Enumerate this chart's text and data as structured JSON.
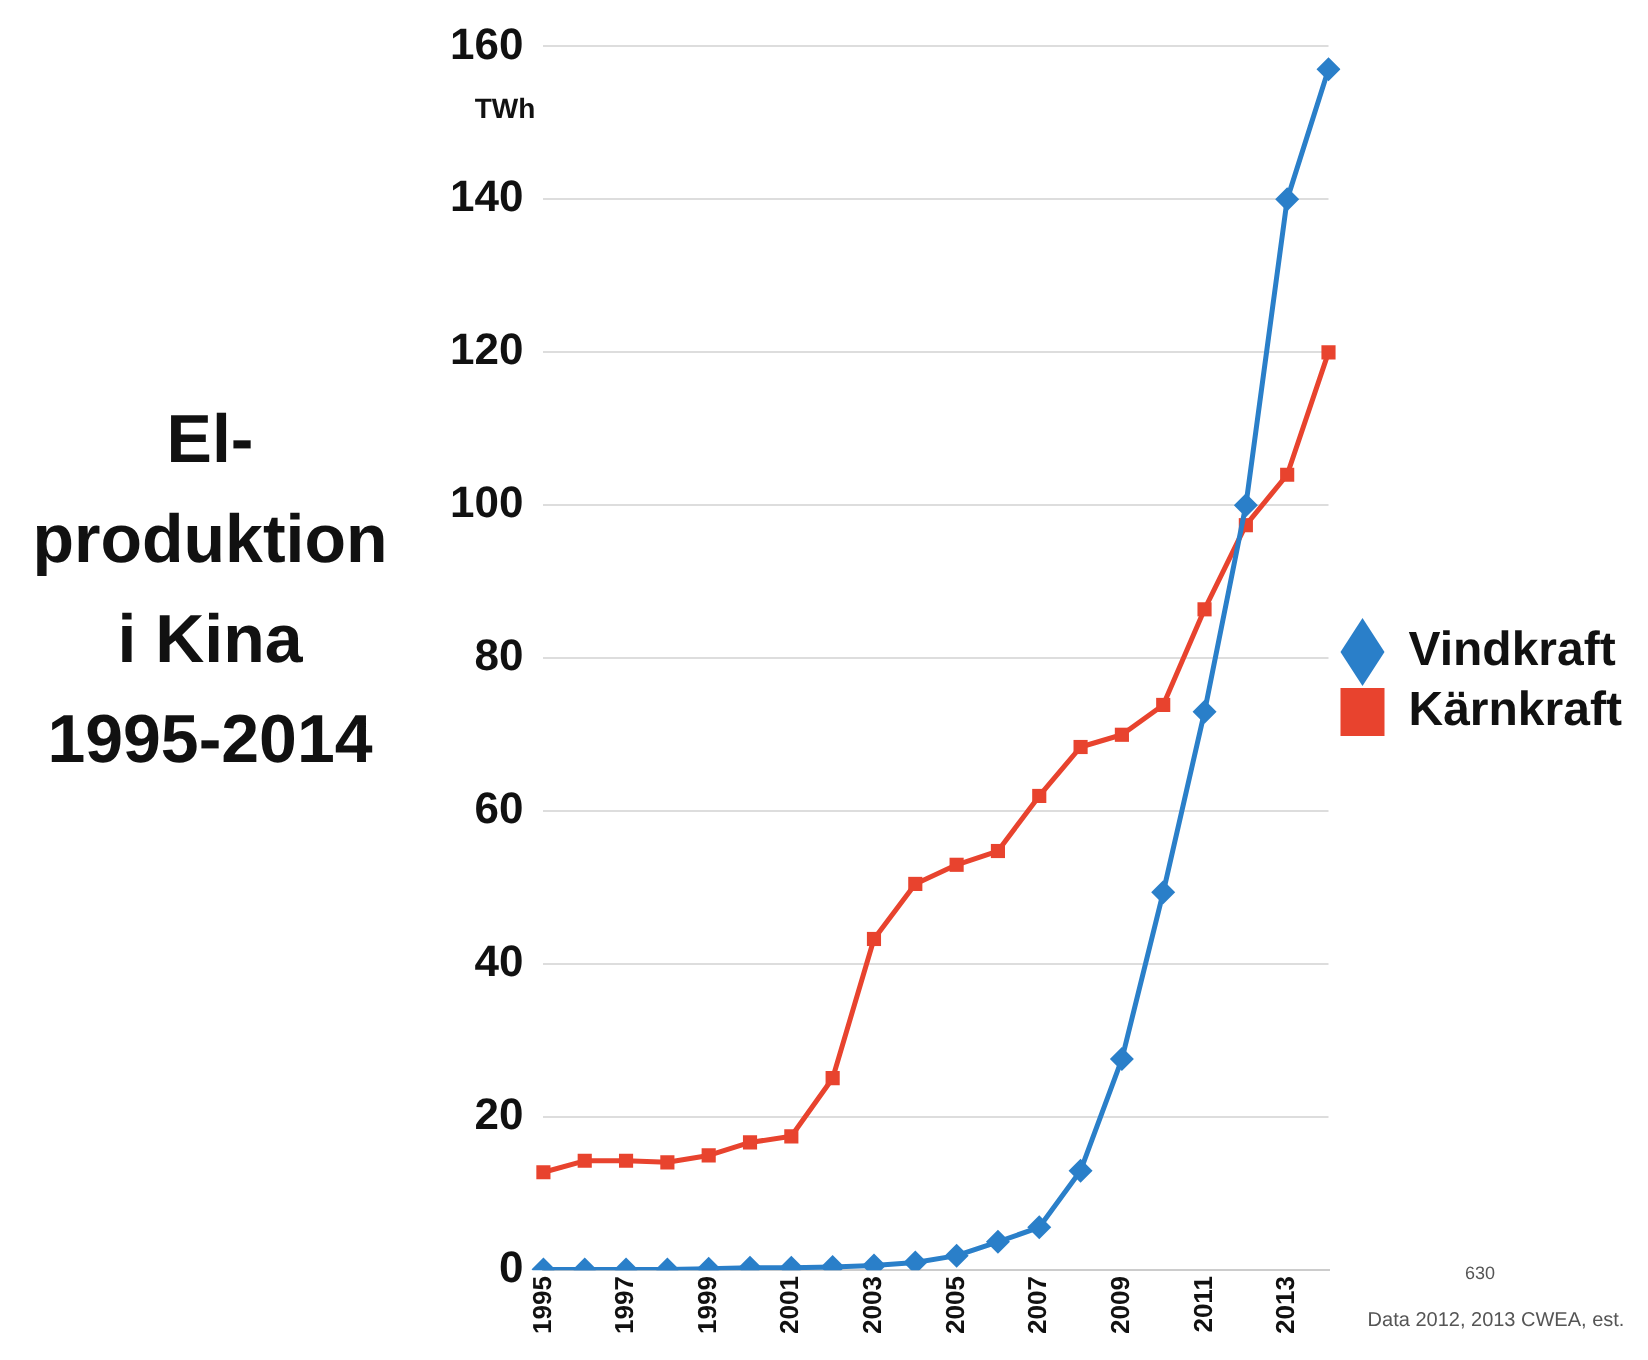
{
  "chart_data": {
    "type": "line",
    "title": "El-\nproduktion\ni Kina\n1995-2014",
    "ylabel": "TWh",
    "categories": [
      "1995",
      null,
      "1997",
      null,
      "1999",
      null,
      "2001",
      null,
      "2003",
      null,
      "2005",
      null,
      "2007",
      null,
      "2009",
      null,
      "2011",
      null,
      "2013",
      null
    ],
    "series": [
      {
        "name": "Vindkraft",
        "color": "#2a7fc9",
        "marker": "diamond",
        "values": [
          0.1,
          0.1,
          0.1,
          0.1,
          0.2,
          0.3,
          0.3,
          0.4,
          0.6,
          1,
          1.9,
          3.7,
          5.6,
          13,
          27.6,
          49.4,
          73,
          100,
          140,
          157
        ]
      },
      {
        "name": "Kärnkraft",
        "color": "#e8432e",
        "marker": "square",
        "values": [
          12.8,
          14.3,
          14.3,
          14.1,
          15,
          16.7,
          17.5,
          25.1,
          43.3,
          50.5,
          53,
          54.8,
          62,
          68.4,
          70,
          73.9,
          86.4,
          97.4,
          104,
          120
        ]
      }
    ],
    "ylim": [
      0,
      160
    ],
    "yticks": [
      0,
      20,
      40,
      60,
      80,
      100,
      120,
      140,
      160
    ],
    "grid": "y",
    "legend": "right",
    "annotations": [
      "630",
      "Data 2012, 2013 CWEA, est."
    ]
  }
}
